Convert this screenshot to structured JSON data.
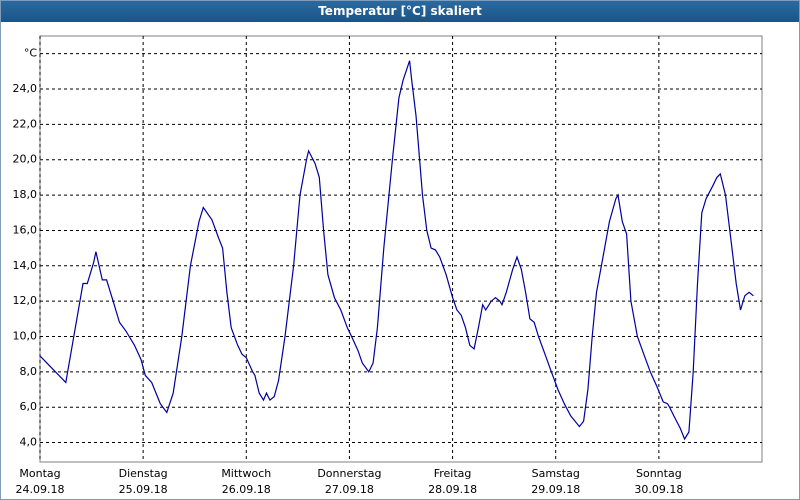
{
  "chart_data": {
    "type": "line",
    "title": "Temperatur [°C] skaliert",
    "xlim": [
      0,
      168
    ],
    "xticks": [
      {
        "value": 0,
        "label": [
          "Montag",
          "24.09.18"
        ]
      },
      {
        "value": 24,
        "label": [
          "Dienstag",
          "25.09.18"
        ]
      },
      {
        "value": 48,
        "label": [
          "Mittwoch",
          "26.09.18"
        ]
      },
      {
        "value": 72,
        "label": [
          "Donnerstag",
          "27.09.18"
        ]
      },
      {
        "value": 96,
        "label": [
          "Freitag",
          "28.09.18"
        ]
      },
      {
        "value": 120,
        "label": [
          "Samstag",
          "29.09.18"
        ]
      },
      {
        "value": 144,
        "label": [
          "Sonntag",
          "30.09.18"
        ]
      }
    ],
    "ylim": [
      2.9,
      27
    ],
    "yticks": [
      {
        "value": 4,
        "label": "4,0"
      },
      {
        "value": 6,
        "label": "6,0"
      },
      {
        "value": 8,
        "label": "8,0"
      },
      {
        "value": 10,
        "label": "10,0"
      },
      {
        "value": 12,
        "label": "12,0"
      },
      {
        "value": 14,
        "label": "14,0"
      },
      {
        "value": 16,
        "label": "16,0"
      },
      {
        "value": 18,
        "label": "18,0"
      },
      {
        "value": 20,
        "label": "20,0"
      },
      {
        "value": 22,
        "label": "22,0"
      },
      {
        "value": 24,
        "label": "24,0"
      },
      {
        "value": 26,
        "label": "°C"
      }
    ],
    "grid": true,
    "series": [
      {
        "color": "#0000a0",
        "x": [
          0,
          6,
          10,
          11,
          12.5,
          13,
          14.5,
          15.5,
          17,
          18.5,
          20,
          22,
          23.5,
          24.5,
          26,
          28,
          29.5,
          31,
          33,
          35,
          37,
          38,
          40,
          41.5,
          42.5,
          43.5,
          44.5,
          46,
          47,
          48,
          49.5,
          50,
          51,
          52,
          52.7,
          53.5,
          54.5,
          55.5,
          57,
          59,
          60.5,
          62,
          62.5,
          64,
          65,
          66,
          67,
          68.5,
          70,
          71.5,
          72.5,
          74,
          75,
          76.5,
          77.5,
          78.5,
          80,
          82,
          83.5,
          84.5,
          86,
          86.5,
          87.5,
          89,
          90,
          91,
          92,
          93,
          94.5,
          96,
          97,
          98,
          99,
          100,
          101,
          102,
          103,
          103.7,
          105,
          106,
          107,
          107.5,
          108.5,
          110,
          111,
          112,
          113,
          114,
          115,
          116,
          117.5,
          119,
          120.5,
          122,
          123.5,
          124.5,
          125.5,
          126.5,
          127.5,
          128.5,
          129.5,
          131,
          132.5,
          134,
          134.5,
          135.5,
          136.5,
          137.5,
          139,
          140.5,
          142,
          143.5,
          145,
          146,
          146.5,
          147.5,
          149,
          150,
          151,
          152,
          153,
          154,
          155,
          156.5,
          157.5,
          158.3,
          159.5,
          160.5,
          162,
          163,
          164,
          165,
          166
        ],
        "values": [
          8.9,
          7.4,
          13.0,
          13.0,
          14.2,
          14.8,
          13.2,
          13.2,
          12.0,
          10.8,
          10.3,
          9.5,
          8.7,
          7.8,
          7.4,
          6.2,
          5.7,
          6.8,
          10,
          14,
          16.5,
          17.3,
          16.6,
          15.6,
          15.0,
          12.5,
          10.5,
          9.5,
          9.0,
          8.8,
          8.0,
          7.8,
          6.8,
          6.4,
          6.8,
          6.4,
          6.6,
          7.5,
          10,
          14,
          18,
          20.0,
          20.5,
          19.8,
          19.0,
          16,
          13.5,
          12.2,
          11.5,
          10.5,
          10.0,
          9.2,
          8.5,
          8.0,
          8.5,
          10.5,
          15,
          20,
          23.5,
          24.5,
          25.6,
          24.5,
          22.5,
          18,
          16,
          15.0,
          14.9,
          14.5,
          13.5,
          12.2,
          11.5,
          11.2,
          10.5,
          9.5,
          9.3,
          10.5,
          11.8,
          11.5,
          12.0,
          12.2,
          12.0,
          11.8,
          12.5,
          13.8,
          14.5,
          13.8,
          12.5,
          11.0,
          10.8,
          10.0,
          9.0,
          8.0,
          7.0,
          6.2,
          5.5,
          5.2,
          4.9,
          5.2,
          7,
          10,
          12.5,
          14.5,
          16.5,
          17.8,
          18.0,
          16.5,
          15.8,
          12,
          10,
          9,
          8,
          7.2,
          6.3,
          6.2,
          6.0,
          5.5,
          4.8,
          4.2,
          4.6,
          8,
          13,
          17,
          17.8,
          18.5,
          19.0,
          19.2,
          18.0,
          16,
          13,
          11.5,
          12.3,
          12.5,
          12.3
        ]
      }
    ]
  }
}
